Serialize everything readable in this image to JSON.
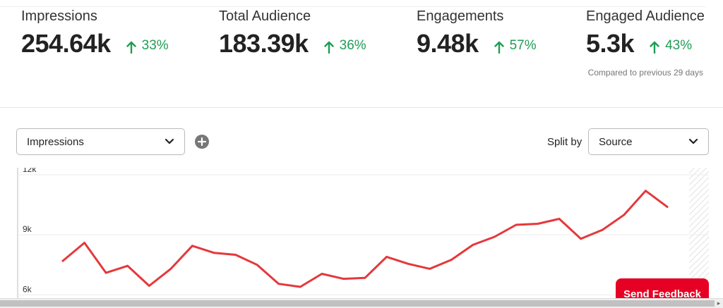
{
  "stats": [
    {
      "label": "Impressions",
      "value": "254.64k",
      "delta": "33%"
    },
    {
      "label": "Total Audience",
      "value": "183.39k",
      "delta": "36%"
    },
    {
      "label": "Engagements",
      "value": "9.48k",
      "delta": "57%"
    },
    {
      "label": "Engaged Audience",
      "value": "5.3k",
      "delta": "43%"
    }
  ],
  "compare_text": "Compared to previous 29 days",
  "controls": {
    "metric_select": "Impressions",
    "split_label": "Split by",
    "split_select": "Source"
  },
  "feedback_button": "Send Feedback",
  "colors": {
    "line": "#e5383b",
    "positive": "#1f9d55",
    "brand": "#e60023"
  },
  "chart_data": {
    "type": "line",
    "y_ticks": [
      "12k",
      "9k",
      "6k"
    ],
    "ylim": [
      5800,
      12000
    ],
    "series": [
      {
        "values": [
          7700,
          8600,
          7100,
          7450,
          6450,
          7300,
          8450,
          8100,
          8000,
          7500,
          6550,
          6400,
          7050,
          6800,
          6850,
          7900,
          7550,
          7300,
          7750,
          8500,
          8900,
          9500,
          9550,
          9800,
          8800,
          9250,
          10000,
          11200,
          10400
        ]
      }
    ]
  }
}
